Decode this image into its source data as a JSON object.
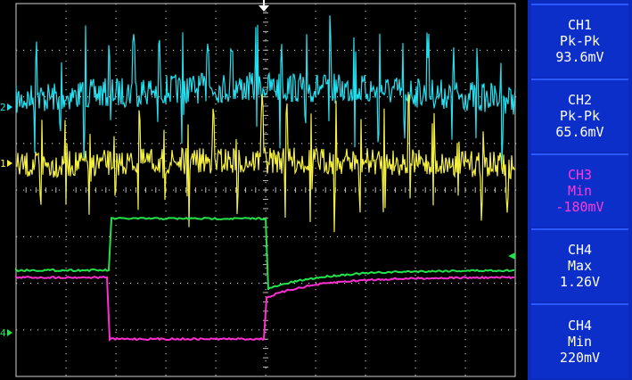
{
  "screen": {
    "channel_colors": {
      "ch1": "#f5f040",
      "ch2": "#22e0f0",
      "ch3": "#ff2fd2",
      "ch4": "#22e34a"
    },
    "channel_markers": {
      "ch1": "1",
      "ch2": "2",
      "ch4": "4"
    },
    "trigger_marker_icon": "trigger-position-arrow-icon",
    "trigger_level_icon": "trigger-level-arrow-icon"
  },
  "measurements": [
    {
      "channel": "CH1",
      "type": "Pk-Pk",
      "value": "93.6mV",
      "color": "#ffffff"
    },
    {
      "channel": "CH2",
      "type": "Pk-Pk",
      "value": "65.6mV",
      "color": "#ffffff"
    },
    {
      "channel": "CH3",
      "type": "Min",
      "value": "-180mV",
      "color": "#ff3ad6"
    },
    {
      "channel": "CH4",
      "type": "Max",
      "value": "1.26V",
      "color": "#ffffff"
    },
    {
      "channel": "CH4",
      "type": "Min",
      "value": "220mV",
      "color": "#ffffff"
    }
  ]
}
